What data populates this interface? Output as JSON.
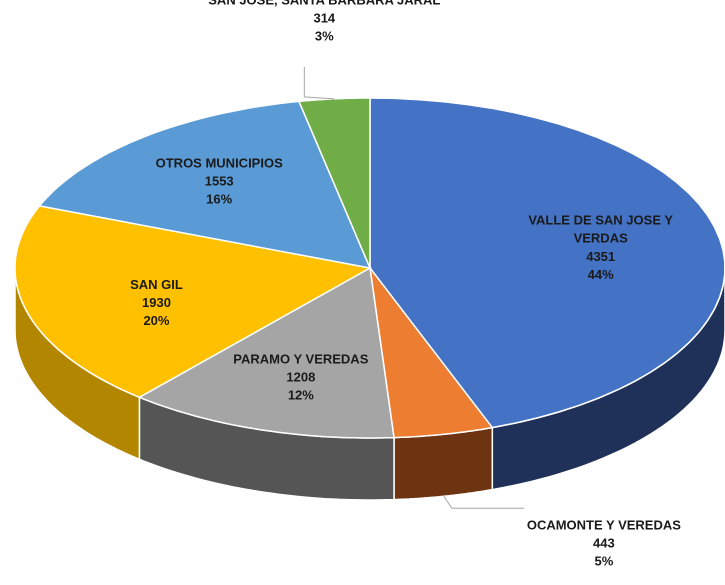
{
  "chart_data": {
    "type": "pie",
    "categories": [
      "VALLE DE SAN JOSE Y VERDAS",
      "OCAMONTE Y VEREDAS",
      "PARAMO Y VEREDAS",
      "SAN GIL",
      "OTROS MUNICIPIOS",
      "SAN JOSE, SANTA BARBARA JARAL"
    ],
    "values": [
      4351,
      443,
      1208,
      1930,
      1553,
      314
    ],
    "percentages": [
      {
        "value": 44,
        "label": "44%"
      },
      {
        "value": 5,
        "label": "5%"
      },
      {
        "value": 12,
        "label": "12%"
      },
      {
        "value": 20,
        "label": "20%"
      },
      {
        "value": 16,
        "label": "16%"
      },
      {
        "value": 3,
        "label": "3%"
      }
    ],
    "colors": [
      "#4472c4",
      "#ed7d31",
      "#a5a5a5",
      "#ffc000",
      "#5b9bd5",
      "#70ad47"
    ],
    "side_colors": [
      "#1f3158",
      "#6e3411",
      "#555555",
      "#b38600",
      "#2f6da3",
      "#3f6b25"
    ]
  }
}
